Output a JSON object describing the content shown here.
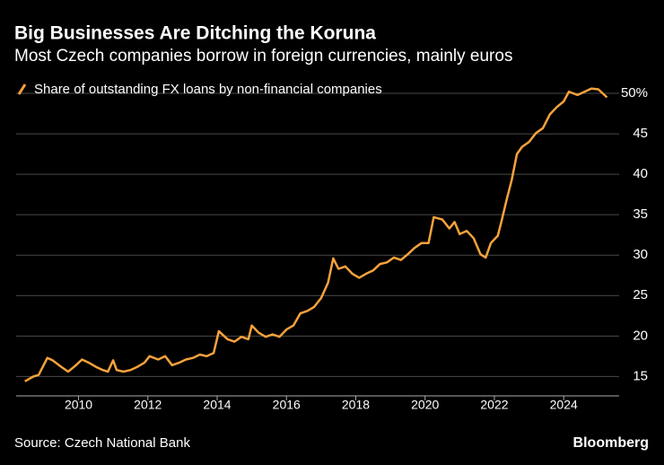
{
  "chart_data": {
    "type": "line",
    "title": "Big Businesses Are Ditching the Koruna",
    "subtitle": "Most Czech companies borrow in foreign currencies, mainly euros",
    "source": "Source: Czech National Bank",
    "brand": "Bloomberg",
    "x": [
      2008.45,
      2008.7,
      2008.85,
      2009.1,
      2009.25,
      2009.5,
      2009.7,
      2009.9,
      2010.1,
      2010.3,
      2010.5,
      2010.7,
      2010.85,
      2011.0,
      2011.1,
      2011.3,
      2011.5,
      2011.7,
      2011.9,
      2012.05,
      2012.3,
      2012.5,
      2012.7,
      2012.9,
      2013.1,
      2013.3,
      2013.5,
      2013.7,
      2013.9,
      2014.05,
      2014.3,
      2014.5,
      2014.7,
      2014.9,
      2015.0,
      2015.2,
      2015.4,
      2015.6,
      2015.8,
      2016.0,
      2016.2,
      2016.4,
      2016.6,
      2016.8,
      2017.0,
      2017.2,
      2017.35,
      2017.5,
      2017.7,
      2017.9,
      2018.1,
      2018.3,
      2018.5,
      2018.7,
      2018.9,
      2019.1,
      2019.3,
      2019.5,
      2019.7,
      2019.9,
      2020.1,
      2020.25,
      2020.5,
      2020.7,
      2020.85,
      2021.0,
      2021.2,
      2021.4,
      2021.6,
      2021.75,
      2021.9,
      2022.1,
      2022.2,
      2022.35,
      2022.5,
      2022.65,
      2022.8,
      2023.0,
      2023.2,
      2023.4,
      2023.6,
      2023.8,
      2024.0,
      2024.15,
      2024.4,
      2024.6,
      2024.8,
      2025.0,
      2025.25
    ],
    "series": [
      {
        "name": "Share of outstanding FX loans by non-financial companies",
        "color": "#f7a23c",
        "values": [
          14.4,
          15.0,
          15.2,
          17.3,
          17.0,
          16.2,
          15.6,
          16.3,
          17.1,
          16.7,
          16.2,
          15.8,
          15.6,
          17.0,
          15.8,
          15.6,
          15.8,
          16.2,
          16.7,
          17.5,
          17.1,
          17.5,
          16.4,
          16.7,
          17.1,
          17.3,
          17.7,
          17.5,
          17.9,
          20.6,
          19.6,
          19.3,
          19.9,
          19.6,
          21.3,
          20.4,
          19.9,
          20.2,
          19.9,
          20.8,
          21.3,
          22.8,
          23.1,
          23.6,
          24.7,
          26.6,
          29.6,
          28.3,
          28.6,
          27.7,
          27.2,
          27.7,
          28.1,
          28.9,
          29.1,
          29.7,
          29.4,
          30.1,
          30.9,
          31.5,
          31.5,
          34.7,
          34.4,
          33.3,
          34.1,
          32.6,
          33.0,
          32.1,
          30.1,
          29.7,
          31.5,
          32.4,
          34.1,
          36.8,
          39.3,
          42.5,
          43.4,
          44.0,
          45.1,
          45.7,
          47.4,
          48.3,
          49.0,
          50.2,
          49.8,
          50.2,
          50.6,
          50.5,
          49.5
        ]
      }
    ],
    "xlim": [
      2008.2,
      2025.6
    ],
    "xticks": [
      2010,
      2012,
      2014,
      2016,
      2018,
      2020,
      2022,
      2024
    ],
    "ylim": [
      12.6,
      51
    ],
    "yticks": [
      15,
      20,
      25,
      30,
      35,
      40,
      45,
      {
        "value": 50,
        "label": "50%"
      }
    ],
    "grid": true
  }
}
